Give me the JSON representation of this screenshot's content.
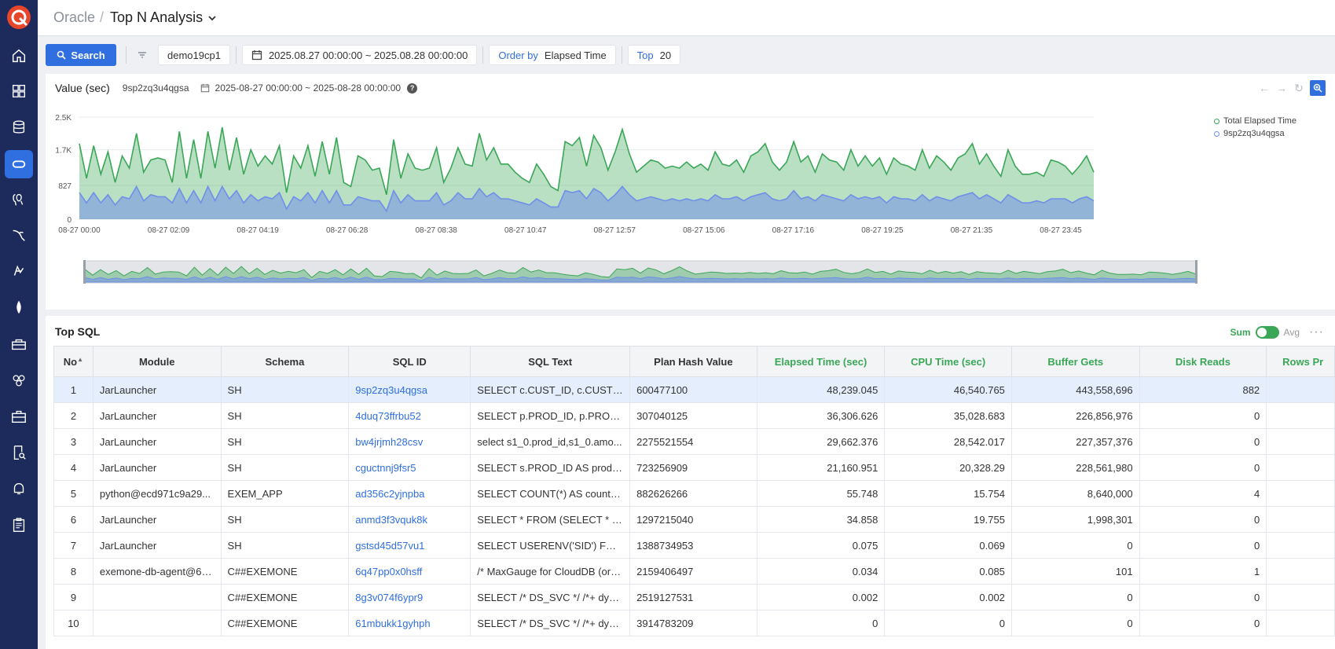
{
  "sidebar": {
    "items": [
      {
        "icon": "home-icon",
        "active": false
      },
      {
        "icon": "dashboard-grid-icon",
        "active": false
      },
      {
        "icon": "database-icon",
        "active": false
      },
      {
        "icon": "oracle-icon",
        "active": true
      },
      {
        "icon": "postgres-icon",
        "active": false
      },
      {
        "icon": "mysql-icon",
        "active": false
      },
      {
        "icon": "sqlserver-icon",
        "active": false
      },
      {
        "icon": "mongodb-icon",
        "active": false
      },
      {
        "icon": "toolbox-icon",
        "active": false
      },
      {
        "icon": "hexagons-icon",
        "active": false
      },
      {
        "icon": "briefcase-icon",
        "active": false
      },
      {
        "icon": "report-search-icon",
        "active": false
      },
      {
        "icon": "bell-icon",
        "active": false
      },
      {
        "icon": "clipboard-icon",
        "active": false
      }
    ]
  },
  "breadcrumb": {
    "root": "Oracle",
    "separator": "/",
    "current": "Top N Analysis"
  },
  "toolbar": {
    "search_label": "Search",
    "instance": "demo19cp1",
    "date_range": "2025.08.27 00:00:00 ~ 2025.08.28 00:00:00",
    "order_label": "Order by",
    "order_value": "Elapsed Time",
    "top_label": "Top",
    "top_value": "20"
  },
  "chart_panel": {
    "title": "Value (sec)",
    "sql_id": "9sp2zq3u4qgsa",
    "range": "2025-08-27 00:00:00 ~ 2025-08-28 00:00:00",
    "help": "?"
  },
  "chart_data": {
    "type": "area",
    "ylabels": [
      "0",
      "827",
      "1.7K",
      "2.5K"
    ],
    "ylim": [
      0,
      2500
    ],
    "xlabels": [
      "08-27 00:00",
      "08-27 02:09",
      "08-27 04:19",
      "08-27 06:28",
      "08-27 08:38",
      "08-27 10:47",
      "08-27 12:57",
      "08-27 15:06",
      "08-27 17:16",
      "08-27 19:25",
      "08-27 21:35",
      "08-27 23:45"
    ],
    "grid": true,
    "legend_position": "top-right",
    "series": [
      {
        "name": "Total Elapsed Time",
        "color": "#3aa757",
        "values": [
          1850,
          1000,
          1800,
          1100,
          1650,
          900,
          1550,
          1250,
          2100,
          1150,
          1450,
          1500,
          1450,
          900,
          2150,
          1000,
          1950,
          1000,
          2150,
          1250,
          2250,
          1200,
          2000,
          1100,
          1700,
          1300,
          1550,
          1350,
          1800,
          650,
          1550,
          1250,
          1800,
          1050,
          1900,
          1100,
          2000,
          900,
          800,
          1550,
          1450,
          1200,
          1250,
          600,
          1950,
          1000,
          1600,
          1250,
          1200,
          1250,
          1750,
          900,
          1250,
          1750,
          1350,
          1300,
          2100,
          1450,
          1750,
          1350,
          1350,
          1150,
          1000,
          900,
          1350,
          1100,
          800,
          700,
          1900,
          1800,
          2000,
          1300,
          2050,
          1750,
          1200,
          1650,
          2200,
          1600,
          1150,
          1300,
          1450,
          1400,
          1250,
          1300,
          1250,
          1400,
          1250,
          1350,
          1200,
          1650,
          1350,
          1300,
          1450,
          1150,
          1550,
          1650,
          1850,
          1400,
          1200,
          1400,
          1900,
          1400,
          1550,
          1150,
          1600,
          1450,
          1400,
          1200,
          1700,
          1300,
          1550,
          1300,
          1500,
          1100,
          1500,
          1350,
          1300,
          1200,
          1700,
          1250,
          1550,
          1400,
          1200,
          1500,
          1600,
          1850,
          1350,
          1600,
          1300,
          1050,
          1700,
          1300,
          1100,
          1100,
          1150,
          1050,
          1450,
          1400,
          1300,
          1100,
          1300,
          1550,
          1150
        ],
        "note": ""
      },
      {
        "name": "9sp2zq3u4qgsa",
        "color": "#6f8fe8",
        "values": [
          650,
          400,
          650,
          400,
          600,
          350,
          550,
          500,
          800,
          450,
          600,
          550,
          550,
          400,
          750,
          400,
          700,
          400,
          800,
          450,
          800,
          500,
          700,
          400,
          600,
          450,
          550,
          500,
          650,
          250,
          550,
          450,
          650,
          400,
          700,
          400,
          700,
          350,
          350,
          550,
          500,
          450,
          450,
          200,
          700,
          400,
          600,
          450,
          450,
          450,
          650,
          350,
          450,
          650,
          500,
          500,
          750,
          550,
          650,
          500,
          500,
          450,
          400,
          350,
          500,
          400,
          300,
          300,
          700,
          650,
          700,
          500,
          750,
          650,
          450,
          600,
          800,
          600,
          450,
          500,
          550,
          500,
          450,
          500,
          450,
          500,
          450,
          500,
          450,
          600,
          500,
          500,
          550,
          450,
          550,
          600,
          650,
          500,
          450,
          500,
          700,
          500,
          550,
          450,
          600,
          550,
          500,
          450,
          600,
          500,
          550,
          500,
          550,
          400,
          550,
          500,
          500,
          450,
          600,
          450,
          550,
          500,
          450,
          550,
          600,
          650,
          500,
          600,
          500,
          400,
          600,
          500,
          400,
          400,
          450,
          400,
          500,
          500,
          500,
          400,
          500,
          550,
          450
        ]
      }
    ]
  },
  "table": {
    "title": "Top SQL",
    "sum_label": "Sum",
    "avg_label": "Avg",
    "more": "···",
    "columns": [
      "No",
      "Module",
      "Schema",
      "SQL ID",
      "SQL Text",
      "Plan Hash Value",
      "Elapsed Time (sec)",
      "CPU Time (sec)",
      "Buffer Gets",
      "Disk Reads",
      "Rows Pr"
    ],
    "rows": [
      {
        "no": "1",
        "module": "JarLauncher",
        "schema": "SH",
        "sql_id": "9sp2zq3u4qgsa",
        "sql_text": "SELECT c.CUST_ID, c.CUST_L...",
        "plan": "600477100",
        "elapsed": "48,239.045",
        "cpu": "46,540.765",
        "buffer": "443,558,696",
        "disk": "882"
      },
      {
        "no": "2",
        "module": "JarLauncher",
        "schema": "SH",
        "sql_id": "4duq73ffrbu52",
        "sql_text": "SELECT p.PROD_ID, p.PROD_N...",
        "plan": "307040125",
        "elapsed": "36,306.626",
        "cpu": "35,028.683",
        "buffer": "226,856,976",
        "disk": "0"
      },
      {
        "no": "3",
        "module": "JarLauncher",
        "schema": "SH",
        "sql_id": "bw4jrjmh28csv",
        "sql_text": "select s1_0.prod_id,s1_0.amo...",
        "plan": "2275521554",
        "elapsed": "29,662.376",
        "cpu": "28,542.017",
        "buffer": "227,357,376",
        "disk": "0"
      },
      {
        "no": "4",
        "module": "JarLauncher",
        "schema": "SH",
        "sql_id": "cguctnnj9fsr5",
        "sql_text": "SELECT s.PROD_ID AS prodId, ...",
        "plan": "723256909",
        "elapsed": "21,160.951",
        "cpu": "20,328.29",
        "buffer": "228,561,980",
        "disk": "0"
      },
      {
        "no": "5",
        "module": "python@ecd971c9a29...",
        "schema": "EXEM_APP",
        "sql_id": "ad356c2yjnpba",
        "sql_text": "SELECT COUNT(*) AS counts ...",
        "plan": "882626266",
        "elapsed": "55.748",
        "cpu": "15.754",
        "buffer": "8,640,000",
        "disk": "4"
      },
      {
        "no": "6",
        "module": "JarLauncher",
        "schema": "SH",
        "sql_id": "anmd3f3vquk8k",
        "sql_text": "SELECT * FROM (SELECT * FR...",
        "plan": "1297215040",
        "elapsed": "34.858",
        "cpu": "19.755",
        "buffer": "1,998,301",
        "disk": "0"
      },
      {
        "no": "7",
        "module": "JarLauncher",
        "schema": "SH",
        "sql_id": "gstsd45d57vu1",
        "sql_text": "SELECT USERENV('SID') FRO...",
        "plan": "1388734953",
        "elapsed": "0.075",
        "cpu": "0.069",
        "buffer": "0",
        "disk": "0"
      },
      {
        "no": "8",
        "module": "exemone-db-agent@63...",
        "schema": "C##EXEMONE",
        "sql_id": "6q47pp0x0hsff",
        "sql_text": "/* MaxGauge for CloudDB (ora...",
        "plan": "2159406497",
        "elapsed": "0.034",
        "cpu": "0.085",
        "buffer": "101",
        "disk": "1"
      },
      {
        "no": "9",
        "module": "",
        "schema": "C##EXEMONE",
        "sql_id": "8g3v074f6ypr9",
        "sql_text": "SELECT /* DS_SVC */ /*+ dyna...",
        "plan": "2519127531",
        "elapsed": "0.002",
        "cpu": "0.002",
        "buffer": "0",
        "disk": "0"
      },
      {
        "no": "10",
        "module": "",
        "schema": "C##EXEMONE",
        "sql_id": "61mbukk1gyhph",
        "sql_text": "SELECT /* DS_SVC */ /*+ dyna...",
        "plan": "3914783209",
        "elapsed": "0",
        "cpu": "0",
        "buffer": "0",
        "disk": "0"
      }
    ]
  }
}
